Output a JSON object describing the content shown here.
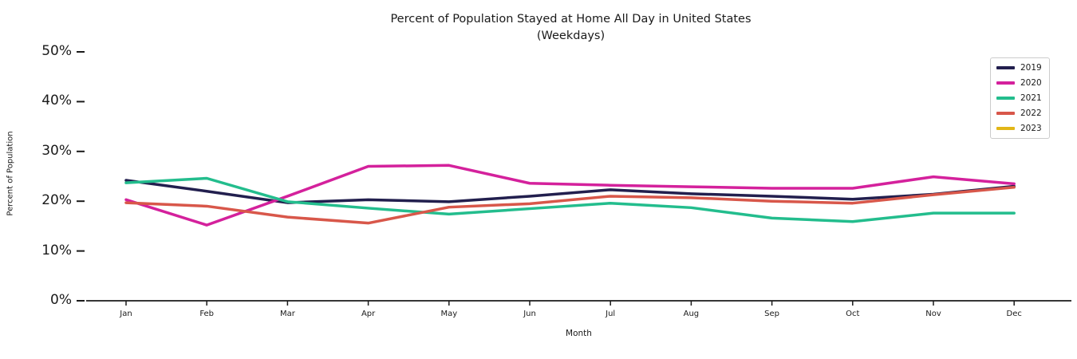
{
  "chart_data": {
    "type": "line",
    "title": "Percent of Population Stayed at Home All Day in United States",
    "subtitle": "(Weekdays)",
    "xlabel": "Month",
    "ylabel": "Percent of Population",
    "categories": [
      "Jan",
      "Feb",
      "Mar",
      "Apr",
      "May",
      "Jun",
      "Jul",
      "Aug",
      "Sep",
      "Oct",
      "Nov",
      "Dec"
    ],
    "series": [
      {
        "name": "2019",
        "color": "#221f4e",
        "values": [
          24.2,
          22.0,
          19.7,
          20.3,
          19.9,
          21.0,
          22.3,
          21.5,
          21.0,
          20.4,
          21.4,
          23.0
        ]
      },
      {
        "name": "2020",
        "color": "#d4219c",
        "values": [
          20.3,
          15.2,
          21.0,
          27.0,
          27.2,
          23.6,
          23.2,
          22.9,
          22.6,
          22.6,
          24.9,
          23.5
        ]
      },
      {
        "name": "2021",
        "color": "#23bd8d",
        "values": [
          23.7,
          24.6,
          19.9,
          18.6,
          17.4,
          18.5,
          19.6,
          18.7,
          16.6,
          15.9,
          17.6,
          17.6
        ]
      },
      {
        "name": "2022",
        "color": "#d8574a",
        "values": [
          19.7,
          19.0,
          16.8,
          15.6,
          18.8,
          19.5,
          21.0,
          20.7,
          20.0,
          19.6,
          21.3,
          22.8
        ]
      },
      {
        "name": "2023",
        "color": "#e2b616",
        "values": []
      }
    ],
    "ylim": [
      0,
      50
    ],
    "yticks": {
      "values": [
        0,
        10,
        20,
        30,
        40,
        50
      ],
      "labels": [
        "0%",
        "10%",
        "20%",
        "30%",
        "40%",
        "50%"
      ]
    },
    "grid": false,
    "legend_position": "upper right",
    "axis_color": "#1a1a1a"
  }
}
